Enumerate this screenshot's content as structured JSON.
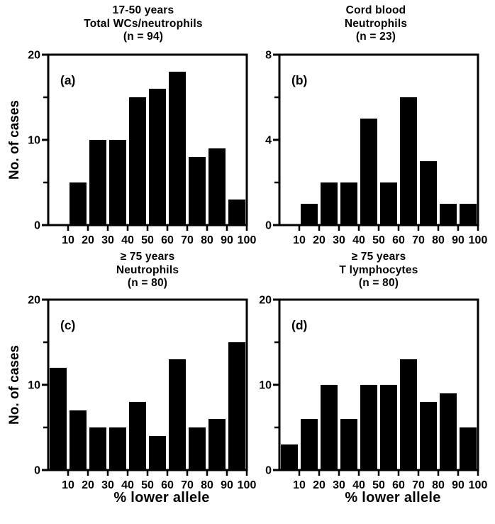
{
  "figure": {
    "background": "#ffffff",
    "ink": "#000000",
    "bar_color": "#000000",
    "grid": false,
    "legend": false
  },
  "chart_data": [
    {
      "type": "bar",
      "panel_label": "(a)",
      "title_lines": [
        "17-50 years",
        "Total WCs/neutrophils",
        "(n = 94)"
      ],
      "n": 94,
      "xlabel": "% lower allele",
      "ylabel": "No. of cases",
      "bins": [
        "0-10",
        "10-20",
        "20-30",
        "30-40",
        "40-50",
        "50-60",
        "60-70",
        "70-80",
        "80-90",
        "90-100"
      ],
      "values": [
        0,
        5,
        10,
        10,
        15,
        16,
        18,
        8,
        9,
        3
      ],
      "xlim": [
        0,
        100
      ],
      "ylim": [
        0,
        20
      ],
      "yticks": [
        0,
        10,
        20
      ],
      "yticks_minor": [
        5,
        15
      ],
      "xticks": [
        10,
        20,
        30,
        40,
        50,
        60,
        70,
        80,
        90,
        100
      ]
    },
    {
      "type": "bar",
      "panel_label": "(b)",
      "title_lines": [
        "Cord blood",
        "Neutrophils",
        "(n = 23)"
      ],
      "n": 23,
      "xlabel": "% lower allele",
      "ylabel": "No. of cases",
      "bins": [
        "0-10",
        "10-20",
        "20-30",
        "30-40",
        "40-50",
        "50-60",
        "60-70",
        "70-80",
        "80-90",
        "90-100"
      ],
      "values": [
        0,
        1,
        2,
        2,
        5,
        2,
        6,
        3,
        1,
        1
      ],
      "xlim": [
        0,
        100
      ],
      "ylim": [
        0,
        8
      ],
      "yticks": [
        0,
        4,
        8
      ],
      "yticks_minor": [
        2,
        6
      ],
      "xticks": [
        10,
        20,
        30,
        40,
        50,
        60,
        70,
        80,
        90,
        100
      ]
    },
    {
      "type": "bar",
      "panel_label": "(c)",
      "title_lines": [
        "≥ 75 years",
        "Neutrophils",
        "(n = 80)"
      ],
      "n": 80,
      "xlabel": "% lower allele",
      "ylabel": "No. of cases",
      "bins": [
        "0-10",
        "10-20",
        "20-30",
        "30-40",
        "40-50",
        "50-60",
        "60-70",
        "70-80",
        "80-90",
        "90-100"
      ],
      "values": [
        12,
        7,
        5,
        5,
        8,
        4,
        13,
        5,
        6,
        15
      ],
      "xlim": [
        0,
        100
      ],
      "ylim": [
        0,
        20
      ],
      "yticks": [
        0,
        10,
        20
      ],
      "yticks_minor": [
        5,
        15
      ],
      "xticks": [
        10,
        20,
        30,
        40,
        50,
        60,
        70,
        80,
        90,
        100
      ]
    },
    {
      "type": "bar",
      "panel_label": "(d)",
      "title_lines": [
        "≥ 75 years",
        "T lymphocytes",
        "(n = 80)"
      ],
      "n": 80,
      "xlabel": "% lower allele",
      "ylabel": "No. of cases",
      "bins": [
        "0-10",
        "10-20",
        "20-30",
        "30-40",
        "40-50",
        "50-60",
        "60-70",
        "70-80",
        "80-90",
        "90-100"
      ],
      "values": [
        3,
        6,
        10,
        6,
        10,
        10,
        13,
        8,
        9,
        5
      ],
      "xlim": [
        0,
        100
      ],
      "ylim": [
        0,
        20
      ],
      "yticks": [
        0,
        10,
        20
      ],
      "yticks_minor": [
        5,
        15
      ],
      "xticks": [
        10,
        20,
        30,
        40,
        50,
        60,
        70,
        80,
        90,
        100
      ]
    }
  ]
}
